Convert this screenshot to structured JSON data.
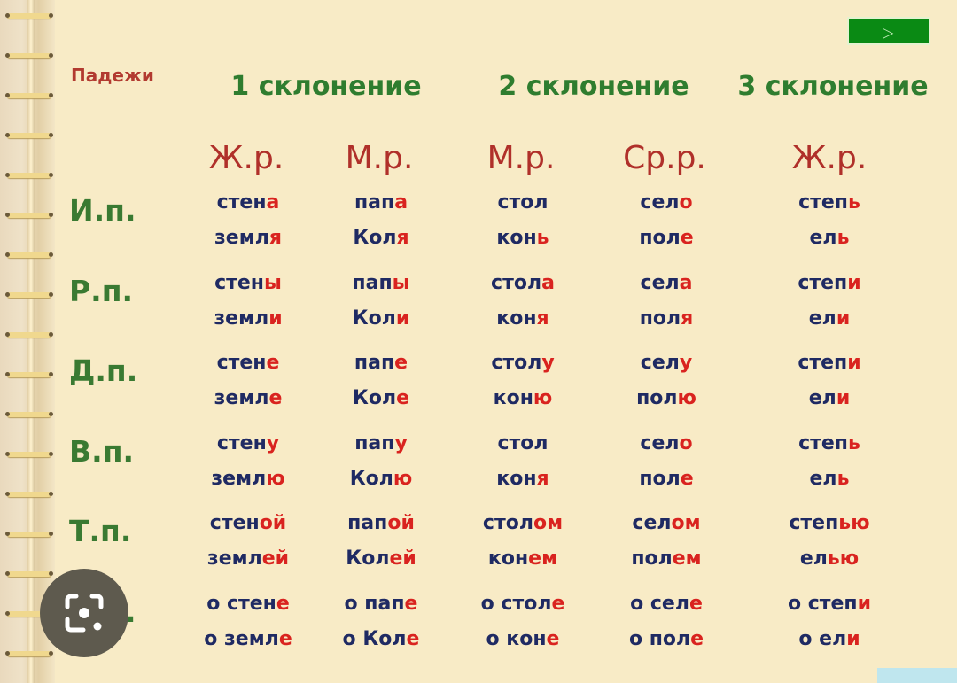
{
  "corner_label": "Падежи",
  "declensions": [
    "1 склонение",
    "2 склонение",
    "3 склонение"
  ],
  "genders": [
    "Ж.р.",
    "М.р.",
    "М.р.",
    "Ср.р.",
    "Ж.р."
  ],
  "colors": {
    "background": "#f8ebc6",
    "stem": "#1f2a63",
    "ending": "#d9231f",
    "header": "#2f7d2f",
    "gender": "#b0302a"
  },
  "play_button": {
    "icon": "play-icon",
    "label": "▷"
  },
  "lens_button": {
    "icon": "google-lens-icon"
  },
  "rows": [
    {
      "case": "И.п.",
      "cells": [
        [
          [
            "стен",
            "а"
          ],
          [
            "земл",
            "я"
          ]
        ],
        [
          [
            "пап",
            "а"
          ],
          [
            "Кол",
            "я"
          ]
        ],
        [
          [
            "стол",
            ""
          ],
          [
            "кон",
            "ь"
          ]
        ],
        [
          [
            "сел",
            "о"
          ],
          [
            "пол",
            "е"
          ]
        ],
        [
          [
            "степ",
            "ь"
          ],
          [
            "ел",
            "ь"
          ]
        ]
      ]
    },
    {
      "case": "Р.п.",
      "cells": [
        [
          [
            "стен",
            "ы"
          ],
          [
            "земл",
            "и"
          ]
        ],
        [
          [
            "пап",
            "ы"
          ],
          [
            "Кол",
            "и"
          ]
        ],
        [
          [
            "стол",
            "а"
          ],
          [
            "кон",
            "я"
          ]
        ],
        [
          [
            "сел",
            "а"
          ],
          [
            "пол",
            "я"
          ]
        ],
        [
          [
            "степ",
            "и"
          ],
          [
            "ел",
            "и"
          ]
        ]
      ]
    },
    {
      "case": "Д.п.",
      "cells": [
        [
          [
            "стен",
            "е"
          ],
          [
            "земл",
            "е"
          ]
        ],
        [
          [
            "пап",
            "е"
          ],
          [
            "Кол",
            "е"
          ]
        ],
        [
          [
            "стол",
            "у"
          ],
          [
            "кон",
            "ю"
          ]
        ],
        [
          [
            "сел",
            "у"
          ],
          [
            "пол",
            "ю"
          ]
        ],
        [
          [
            "степ",
            "и"
          ],
          [
            "ел",
            "и"
          ]
        ]
      ]
    },
    {
      "case": "В.п.",
      "cells": [
        [
          [
            "стен",
            "у"
          ],
          [
            "земл",
            "ю"
          ]
        ],
        [
          [
            "пап",
            "у"
          ],
          [
            "Кол",
            "ю"
          ]
        ],
        [
          [
            "стол",
            ""
          ],
          [
            "кон",
            "я"
          ]
        ],
        [
          [
            "сел",
            "о"
          ],
          [
            "пол",
            "е"
          ]
        ],
        [
          [
            "степ",
            "ь"
          ],
          [
            "ел",
            "ь"
          ]
        ]
      ]
    },
    {
      "case": "Т.п.",
      "cells": [
        [
          [
            "стен",
            "ой"
          ],
          [
            "земл",
            "ей"
          ]
        ],
        [
          [
            "пап",
            "ой"
          ],
          [
            "Кол",
            "ей"
          ]
        ],
        [
          [
            "стол",
            "ом"
          ],
          [
            "кон",
            "ем"
          ]
        ],
        [
          [
            "сел",
            "ом"
          ],
          [
            "пол",
            "ем"
          ]
        ],
        [
          [
            "степ",
            "ью"
          ],
          [
            "ел",
            "ью"
          ]
        ]
      ]
    },
    {
      "case": "П.п.",
      "cells": [
        [
          [
            "о стен",
            "е"
          ],
          [
            "о земл",
            "е"
          ]
        ],
        [
          [
            "о пап",
            "е"
          ],
          [
            "о Кол",
            "е"
          ]
        ],
        [
          [
            "о стол",
            "е"
          ],
          [
            "о кон",
            "е"
          ]
        ],
        [
          [
            "о сел",
            "е"
          ],
          [
            "о пол",
            "е"
          ]
        ],
        [
          [
            "о степ",
            "и"
          ],
          [
            "о ел",
            "и"
          ]
        ]
      ]
    }
  ]
}
